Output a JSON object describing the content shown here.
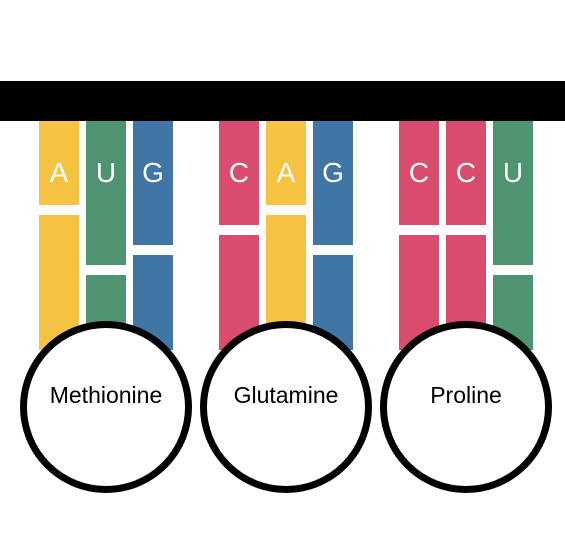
{
  "colors": {
    "A": "#F5C242",
    "U": "#4F9470",
    "G": "#3F76A5",
    "C": "#D94C6D",
    "strand": "#000000"
  },
  "codons": [
    {
      "bases": [
        "A",
        "U",
        "G"
      ],
      "amino_acid": "Methionine"
    },
    {
      "bases": [
        "C",
        "A",
        "G"
      ],
      "amino_acid": "Glutamine"
    },
    {
      "bases": [
        "C",
        "C",
        "U"
      ],
      "amino_acid": "Proline"
    }
  ]
}
